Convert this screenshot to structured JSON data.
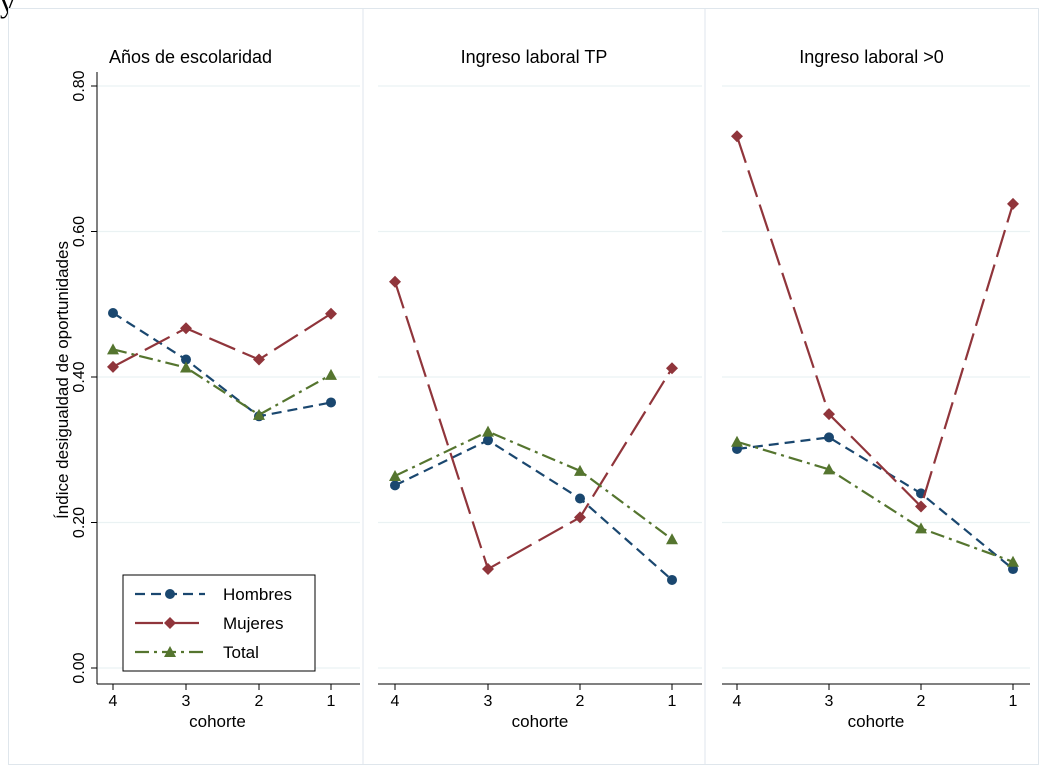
{
  "top_fragment": "y",
  "legend_colors": {
    "Hombres": "#1a476f",
    "Mujeres": "#90353b",
    "Total": "#55752f"
  },
  "chart_data": [
    {
      "type": "line",
      "title": "Años de escolaridad",
      "xlabel": "cohorte",
      "ylabel": "Índice desigualdad de oportunidades",
      "x": [
        4,
        3,
        2,
        1
      ],
      "ylim": [
        0,
        0.8
      ],
      "yticks": [
        "0.00",
        "0.20",
        "0.40",
        "0.60",
        "0.80"
      ],
      "series": [
        {
          "name": "Hombres",
          "values": [
            0.488,
            0.424,
            0.346,
            0.365
          ]
        },
        {
          "name": "Mujeres",
          "values": [
            0.414,
            0.467,
            0.424,
            0.487
          ]
        },
        {
          "name": "Total",
          "values": [
            0.438,
            0.413,
            0.348,
            0.403
          ]
        }
      ]
    },
    {
      "type": "line",
      "title": "Ingreso laboral TP",
      "xlabel": "cohorte",
      "x": [
        4,
        3,
        2,
        1
      ],
      "ylim": [
        0,
        0.8
      ],
      "series": [
        {
          "name": "Hombres",
          "values": [
            0.251,
            0.313,
            0.233,
            0.121
          ]
        },
        {
          "name": "Mujeres",
          "values": [
            0.531,
            0.136,
            0.207,
            0.412
          ]
        },
        {
          "name": "Total",
          "values": [
            0.264,
            0.325,
            0.271,
            0.177
          ]
        }
      ]
    },
    {
      "type": "line",
      "title": "Ingreso laboral >0",
      "xlabel": "cohorte",
      "x": [
        4,
        3,
        2,
        1
      ],
      "ylim": [
        0,
        0.8
      ],
      "series": [
        {
          "name": "Hombres",
          "values": [
            0.301,
            0.317,
            0.24,
            0.136
          ]
        },
        {
          "name": "Mujeres",
          "values": [
            0.731,
            0.349,
            0.222,
            0.638
          ]
        },
        {
          "name": "Total",
          "values": [
            0.311,
            0.273,
            0.192,
            0.146
          ]
        }
      ]
    }
  ],
  "legend": {
    "placement": "bottom-left of first panel",
    "items": [
      "Hombres",
      "Mujeres",
      "Total"
    ]
  }
}
